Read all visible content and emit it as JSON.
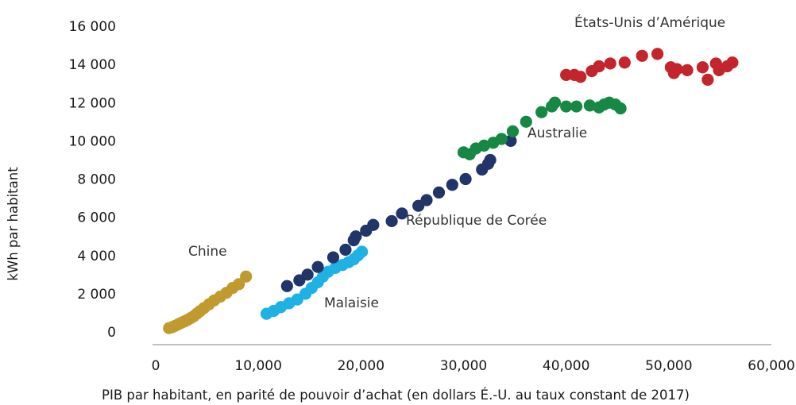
{
  "chart_data": {
    "type": "scatter",
    "xlabel": "PIB par habitant, en parité de pouvoir d’achat (en dollars É.-U. au taux constant de 2017)",
    "ylabel": "kWh par habitant",
    "xlim": [
      0,
      60000
    ],
    "ylim": [
      0,
      16000
    ],
    "x_tick_labels": [
      "0",
      "10,000",
      "20,000",
      "30,000",
      "40,000",
      "50,000",
      "60,000"
    ],
    "y_tick_labels": [
      "0",
      "2 000",
      "4 000",
      "6 000",
      "8 000",
      "10 000",
      "12 000",
      "14 000",
      "16 000"
    ],
    "grid": false,
    "series": [
      {
        "name": "Chine",
        "color": "#c09a2e",
        "points": [
          [
            1300,
            200
          ],
          [
            1600,
            250
          ],
          [
            1900,
            320
          ],
          [
            2200,
            400
          ],
          [
            2500,
            480
          ],
          [
            2800,
            550
          ],
          [
            3100,
            630
          ],
          [
            3400,
            720
          ],
          [
            3700,
            820
          ],
          [
            4000,
            950
          ],
          [
            4300,
            1080
          ],
          [
            4700,
            1250
          ],
          [
            5200,
            1450
          ],
          [
            5700,
            1650
          ],
          [
            6300,
            1850
          ],
          [
            6900,
            2050
          ],
          [
            7500,
            2300
          ],
          [
            8100,
            2500
          ],
          [
            8800,
            2900
          ]
        ]
      },
      {
        "name": "Malaisie",
        "color": "#1eb1e3",
        "points": [
          [
            10800,
            950
          ],
          [
            11500,
            1100
          ],
          [
            12200,
            1300
          ],
          [
            13000,
            1500
          ],
          [
            13800,
            1700
          ],
          [
            14600,
            2000
          ],
          [
            15200,
            2300
          ],
          [
            15800,
            2600
          ],
          [
            16300,
            2900
          ],
          [
            16800,
            3150
          ],
          [
            17500,
            3350
          ],
          [
            18200,
            3500
          ],
          [
            18800,
            3650
          ],
          [
            19300,
            3800
          ],
          [
            19700,
            4000
          ],
          [
            20100,
            4200
          ]
        ]
      },
      {
        "name": "République de Corée",
        "color": "#213569",
        "points": [
          [
            12800,
            2400
          ],
          [
            14000,
            2700
          ],
          [
            14800,
            3000
          ],
          [
            15800,
            3400
          ],
          [
            17300,
            3900
          ],
          [
            18500,
            4300
          ],
          [
            19300,
            4800
          ],
          [
            19500,
            5000
          ],
          [
            20500,
            5300
          ],
          [
            21200,
            5600
          ],
          [
            23000,
            5800
          ],
          [
            24000,
            6200
          ],
          [
            25600,
            6600
          ],
          [
            26400,
            6900
          ],
          [
            27600,
            7300
          ],
          [
            28900,
            7700
          ],
          [
            30200,
            8000
          ],
          [
            31800,
            8500
          ],
          [
            32400,
            8800
          ],
          [
            32600,
            9000
          ],
          [
            34600,
            10000
          ]
        ]
      },
      {
        "name": "Australie",
        "color": "#168843",
        "points": [
          [
            30000,
            9400
          ],
          [
            30600,
            9300
          ],
          [
            31200,
            9600
          ],
          [
            32000,
            9750
          ],
          [
            32900,
            9900
          ],
          [
            33700,
            10100
          ],
          [
            34800,
            10500
          ],
          [
            36100,
            11000
          ],
          [
            37600,
            11500
          ],
          [
            38600,
            11800
          ],
          [
            38900,
            12000
          ],
          [
            40000,
            11800
          ],
          [
            41000,
            11800
          ],
          [
            42300,
            11850
          ],
          [
            43200,
            11750
          ],
          [
            43700,
            11900
          ],
          [
            44200,
            12000
          ],
          [
            44800,
            11900
          ],
          [
            45300,
            11700
          ]
        ]
      },
      {
        "name": "États-Unis d’Amérique",
        "color": "#c4242b",
        "points": [
          [
            40000,
            13450
          ],
          [
            40800,
            13450
          ],
          [
            41400,
            13350
          ],
          [
            42500,
            13650
          ],
          [
            43200,
            13900
          ],
          [
            44300,
            14050
          ],
          [
            45700,
            14100
          ],
          [
            47400,
            14450
          ],
          [
            48900,
            14550
          ],
          [
            50200,
            13850
          ],
          [
            50500,
            13550
          ],
          [
            50800,
            13750
          ],
          [
            51800,
            13700
          ],
          [
            53300,
            13850
          ],
          [
            53800,
            13200
          ],
          [
            54600,
            14050
          ],
          [
            54900,
            13700
          ],
          [
            55700,
            13900
          ],
          [
            56200,
            14100
          ]
        ]
      }
    ]
  }
}
